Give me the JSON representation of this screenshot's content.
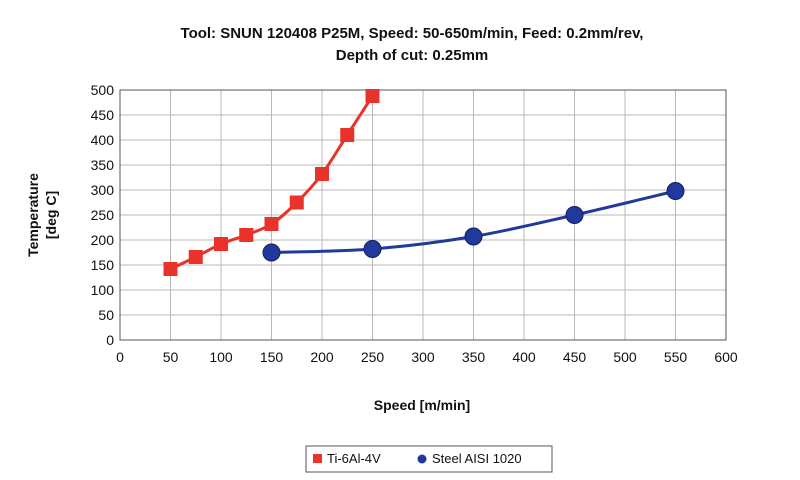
{
  "chart_data": {
    "type": "line",
    "title_lines": [
      "Tool: SNUN 120408 P25M, Speed: 50-650m/min, Feed: 0.2mm/rev,",
      "Depth of cut: 0.25mm"
    ],
    "xlabel": "Speed [m/min]",
    "ylabel_lines": [
      "Temperature",
      "[deg C]"
    ],
    "xlim": [
      0,
      600
    ],
    "ylim": [
      0,
      500
    ],
    "xticks": [
      0,
      50,
      100,
      150,
      200,
      250,
      300,
      350,
      400,
      450,
      500,
      550,
      600
    ],
    "yticks": [
      0,
      50,
      100,
      150,
      200,
      250,
      300,
      350,
      400,
      450,
      500
    ],
    "grid": true,
    "legend_position": "bottom",
    "series": [
      {
        "name": "Ti-6Al-4V",
        "color": "#e8322a",
        "marker": "square",
        "x": [
          50,
          75,
          100,
          125,
          150,
          175,
          200,
          225,
          250
        ],
        "y": [
          142,
          166,
          192,
          210,
          232,
          275,
          332,
          410,
          488
        ]
      },
      {
        "name": "Steel AISI 1020",
        "color": "#1f3a9c",
        "marker": "circle",
        "x": [
          150,
          250,
          350,
          450,
          550
        ],
        "y": [
          175,
          182,
          207,
          250,
          298
        ]
      }
    ]
  }
}
